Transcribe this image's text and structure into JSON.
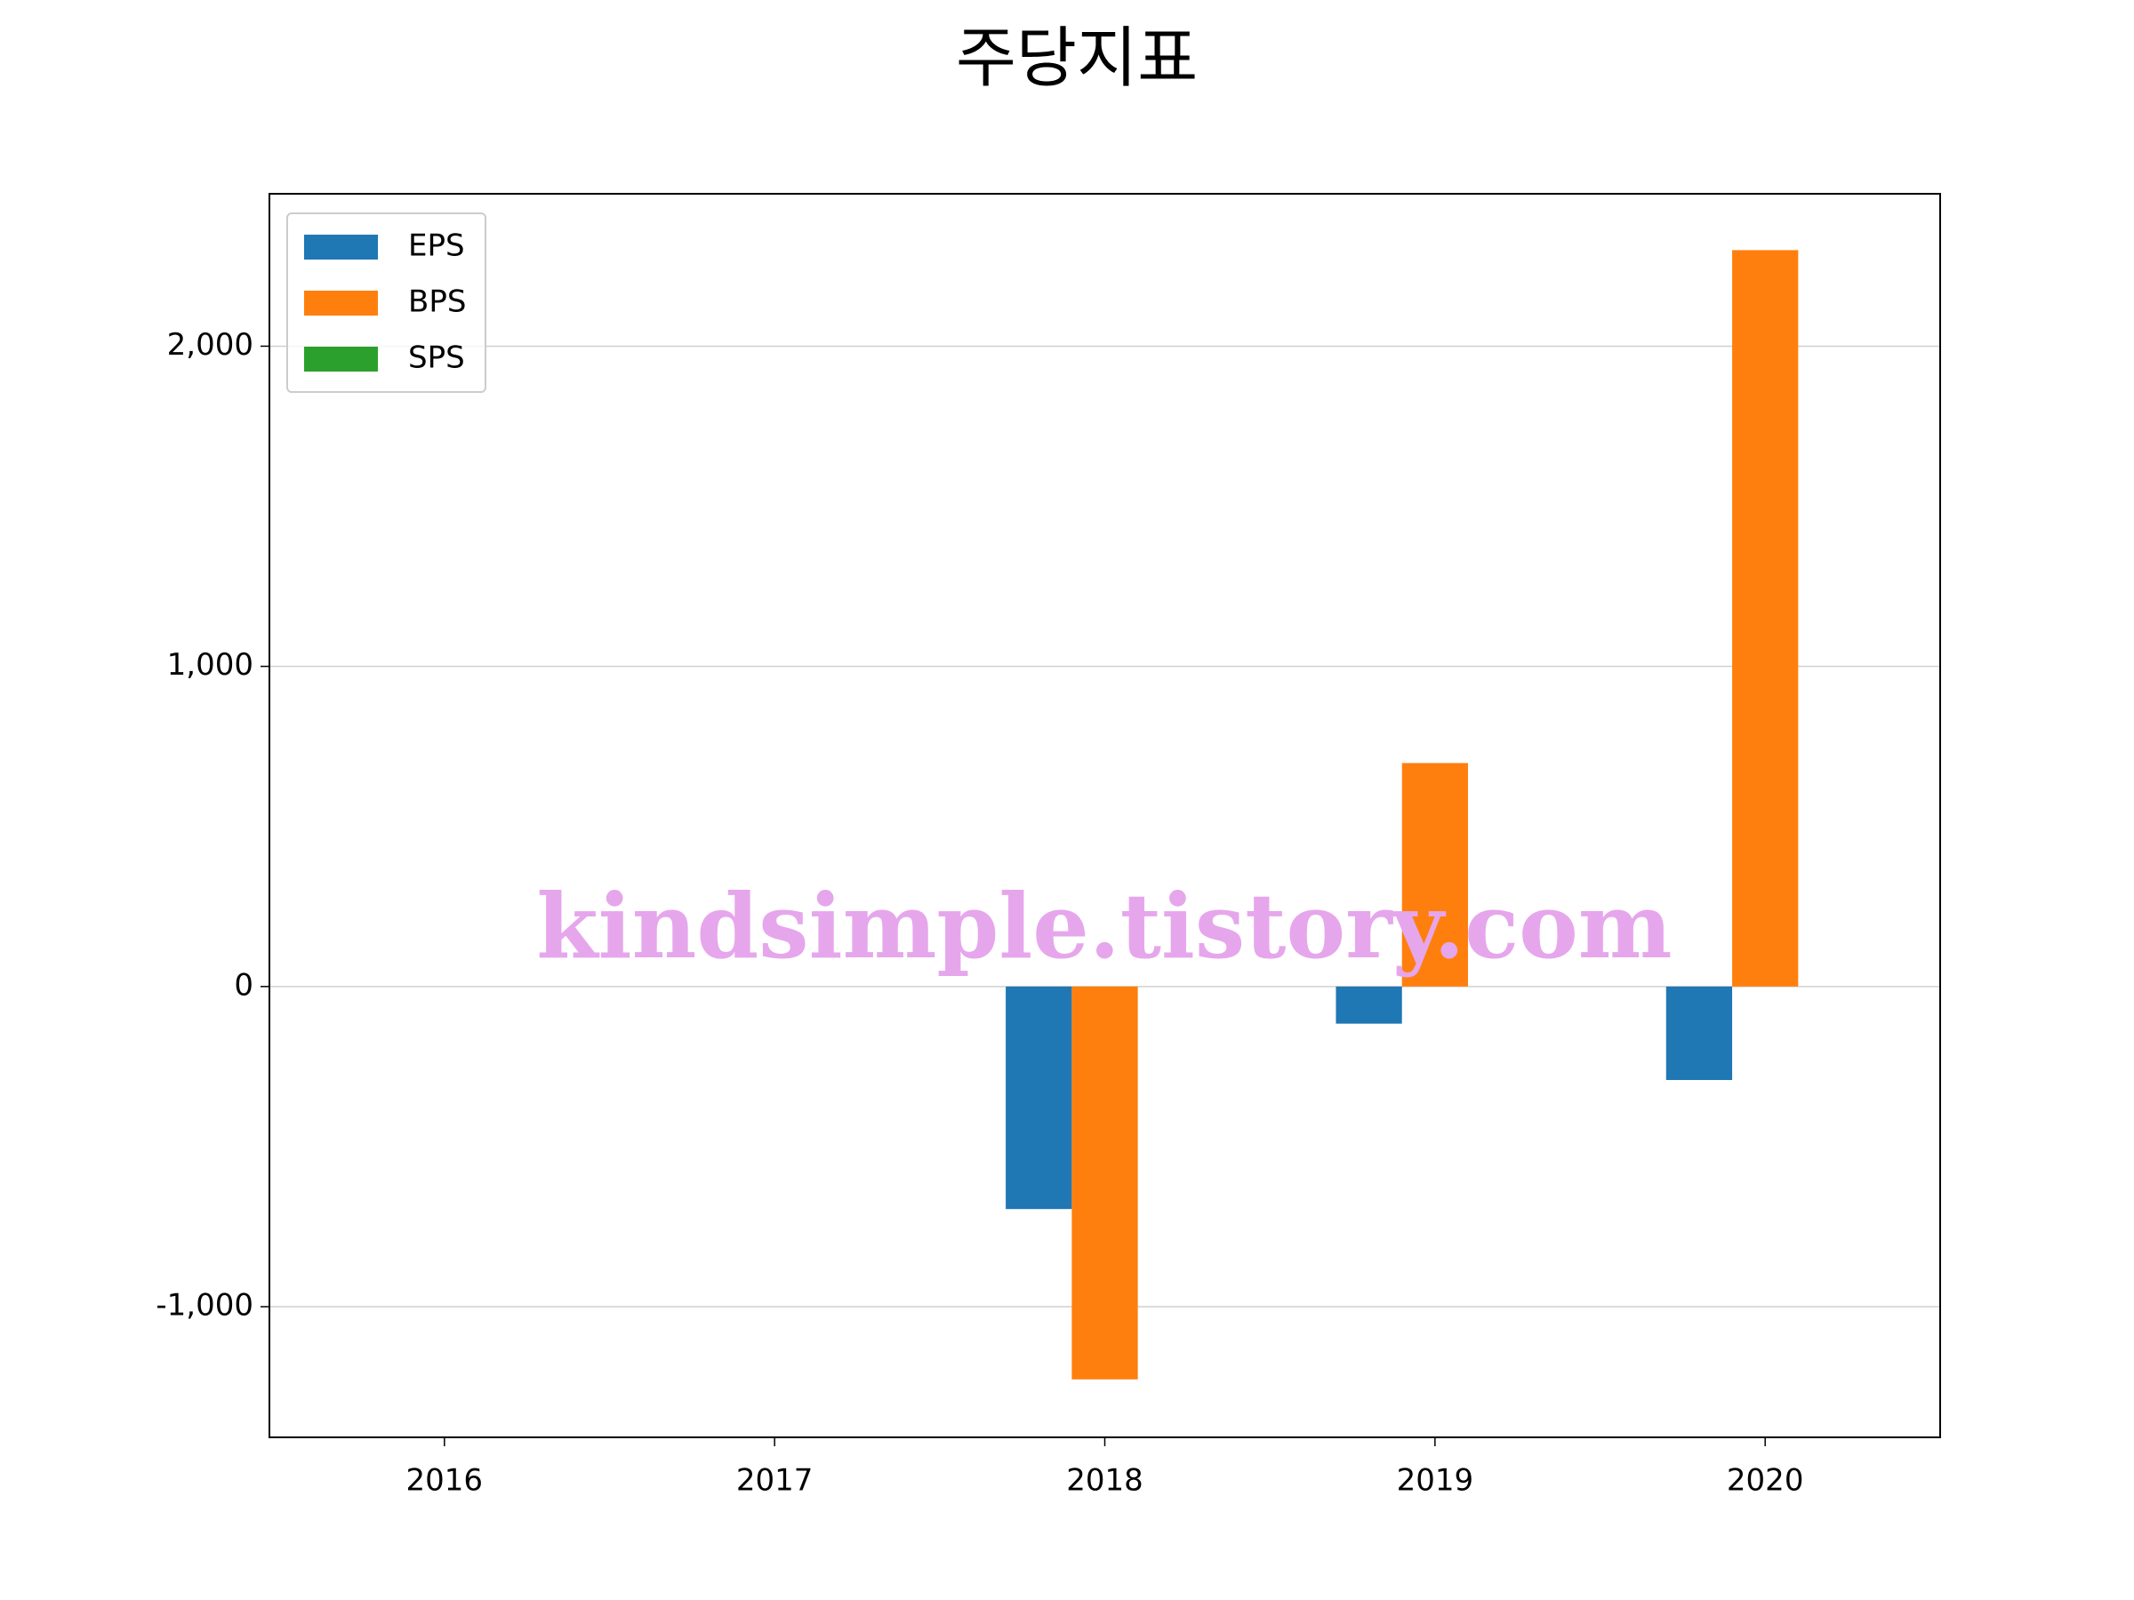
{
  "chart_data": {
    "type": "bar",
    "title": "주당지표",
    "categories": [
      "2016",
      "2017",
      "2018",
      "2019",
      "2020"
    ],
    "series": [
      {
        "name": "EPS",
        "color": "#1f77b4",
        "values": [
          null,
          null,
          -695,
          -116,
          -292
        ]
      },
      {
        "name": "BPS",
        "color": "#ff7f0e",
        "values": [
          null,
          null,
          -1227,
          698,
          2300
        ]
      },
      {
        "name": "SPS",
        "color": "#2ca02c",
        "values": [
          null,
          null,
          0,
          0,
          0
        ]
      }
    ],
    "ylim": [
      -1408,
      2476
    ],
    "yticks": [
      {
        "value": 2000,
        "label": "2,000"
      },
      {
        "value": 1000,
        "label": "1,000"
      },
      0,
      {
        "value": -1000,
        "label": "-1,000"
      }
    ],
    "grid": true,
    "legend": "upper left",
    "watermark": "kindsimple.tistory.com"
  }
}
